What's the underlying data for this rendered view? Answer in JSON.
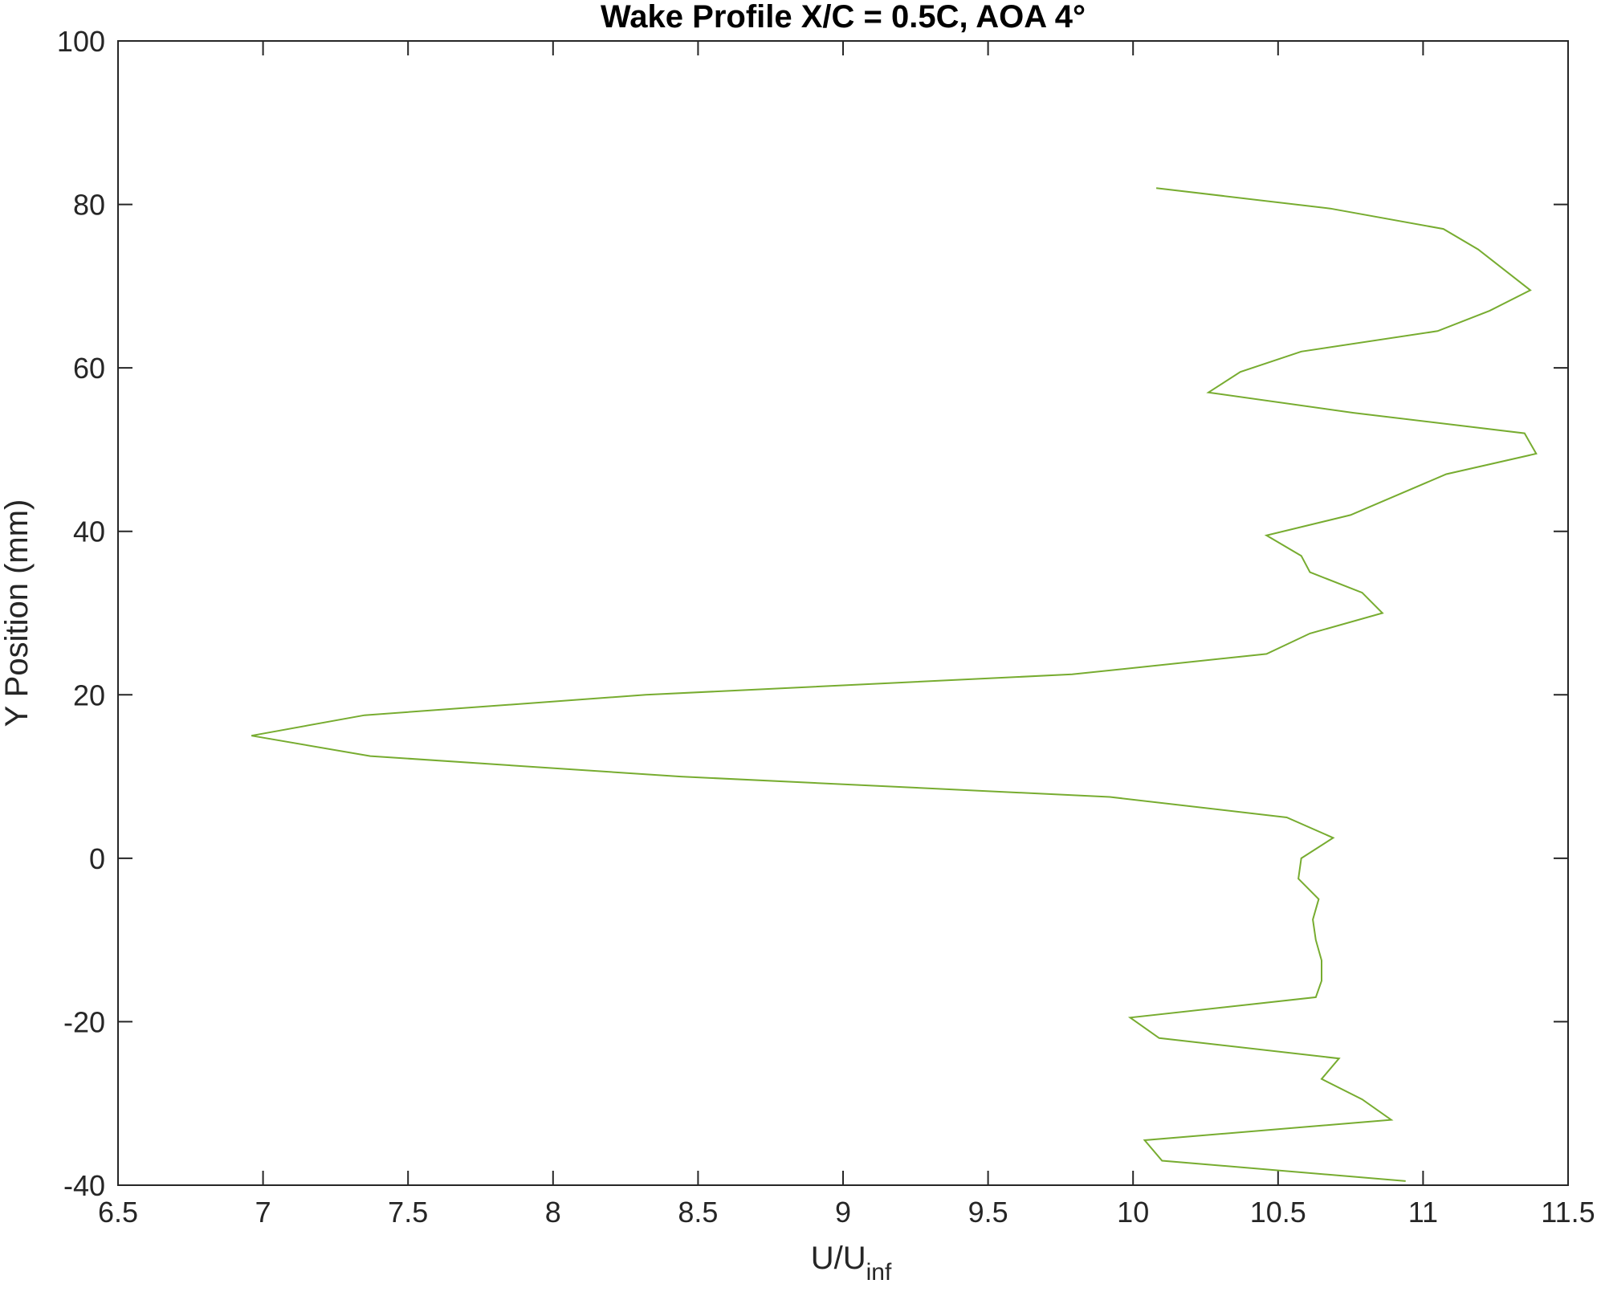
{
  "chart_data": {
    "type": "line",
    "title": "Wake Profile X/C = 0.5C, AOA 4°",
    "xlabel": {
      "main": "U/U",
      "subscript": "inf"
    },
    "ylabel": "Y Position (mm)",
    "xlim": [
      6.5,
      11.5
    ],
    "ylim": [
      -40,
      100
    ],
    "xticks": [
      6.5,
      7,
      7.5,
      8,
      8.5,
      9,
      9.5,
      10,
      10.5,
      11,
      11.5
    ],
    "xtick_labels": [
      "6.5",
      "7",
      "7.5",
      "8",
      "8.5",
      "9",
      "9.5",
      "10",
      "10.5",
      "11",
      "11.5"
    ],
    "yticks": [
      -40,
      -20,
      0,
      20,
      40,
      60,
      80,
      100
    ],
    "ytick_labels": [
      "-40",
      "-20",
      "0",
      "20",
      "40",
      "60",
      "80",
      "100"
    ],
    "grid": false,
    "series": [
      {
        "color": "#77ac30",
        "x": [
          10.08,
          10.68,
          11.07,
          11.19,
          11.37,
          11.23,
          11.05,
          10.58,
          10.37,
          10.26,
          10.76,
          11.35,
          11.39,
          11.08,
          10.75,
          10.46,
          10.58,
          10.61,
          10.79,
          10.86,
          10.61,
          10.46,
          9.79,
          8.32,
          7.35,
          6.96,
          7.37,
          8.44,
          9.92,
          10.53,
          10.69,
          10.58,
          10.57,
          10.64,
          10.62,
          10.63,
          10.65,
          10.65,
          10.63,
          9.99,
          10.09,
          10.71,
          10.65,
          10.79,
          10.89,
          10.04,
          10.1,
          10.94
        ],
        "y": [
          82,
          79.5,
          77,
          74.5,
          69.5,
          67,
          64.5,
          62,
          59.5,
          57,
          54.5,
          52,
          49.5,
          47,
          42,
          39.5,
          37,
          35,
          32.5,
          30,
          27.5,
          25,
          22.5,
          20,
          17.5,
          15,
          12.5,
          10,
          7.5,
          5,
          2.5,
          0,
          -2.5,
          -5,
          -7.5,
          -10,
          -12.5,
          -15,
          -17,
          -19.5,
          -22,
          -24.5,
          -27,
          -29.5,
          -32,
          -34.5,
          -37,
          -39.5
        ]
      }
    ]
  }
}
